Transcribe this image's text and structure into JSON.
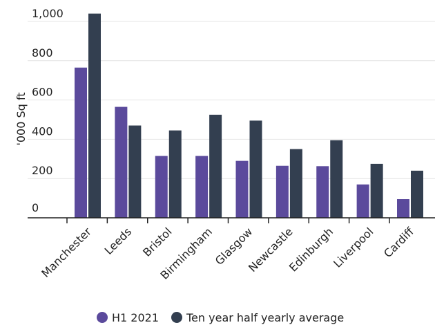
{
  "chart_data": {
    "type": "bar",
    "categories": [
      "Manchester",
      "Leeds",
      "Bristol",
      "Birmingham",
      "Glasgow",
      "Newcastle",
      "Edinburgh",
      "Liverpool",
      "Cardiff"
    ],
    "series": [
      {
        "name": "H1 2021",
        "color": "#5b4a9c",
        "values": [
          765,
          565,
          315,
          315,
          290,
          265,
          263,
          170,
          95
        ]
      },
      {
        "name": "Ten year half yearly average",
        "color": "#333f50",
        "values": [
          1040,
          470,
          445,
          525,
          495,
          350,
          395,
          275,
          240
        ]
      }
    ],
    "ylabel": "'000 Sq ft",
    "ylim": [
      0,
      1000
    ],
    "yticks": [
      0,
      200,
      400,
      600,
      800,
      1000
    ],
    "ytick_labels": [
      "0",
      "200",
      "400",
      "600",
      "800",
      "1,000"
    ],
    "grid": true,
    "legend_position": "bottom-center"
  }
}
